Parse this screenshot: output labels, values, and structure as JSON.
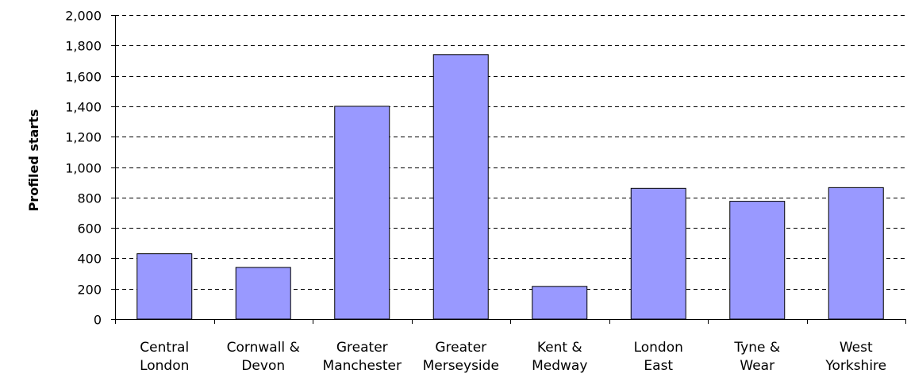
{
  "chart_data": {
    "type": "bar",
    "title": "",
    "xlabel": "",
    "ylabel": "Profiled starts",
    "ylim": [
      0,
      2000
    ],
    "yticks": [
      0,
      200,
      400,
      600,
      800,
      1000,
      1200,
      1400,
      1600,
      1800,
      2000
    ],
    "ytick_labels": [
      "0",
      "200",
      "400",
      "600",
      "800",
      "1,000",
      "1,200",
      "1,400",
      "1,600",
      "1,800",
      "2,000"
    ],
    "grid": "horizontal-dashed",
    "legend": "none",
    "categories": [
      [
        "Central",
        "London"
      ],
      [
        "Cornwall &",
        "Devon"
      ],
      [
        "Greater",
        "Manchester"
      ],
      [
        "Greater",
        "Merseyside"
      ],
      [
        "Kent &",
        "Medway"
      ],
      [
        "London",
        "East"
      ],
      [
        "Tyne &",
        "Wear"
      ],
      [
        "West",
        "Yorkshire"
      ]
    ],
    "values": [
      430,
      340,
      1400,
      1740,
      215,
      860,
      775,
      865
    ],
    "colors": {
      "bar_fill": "#9999FF",
      "bar_stroke": "#000000",
      "grid": "#000000",
      "axis": "#000000"
    }
  }
}
